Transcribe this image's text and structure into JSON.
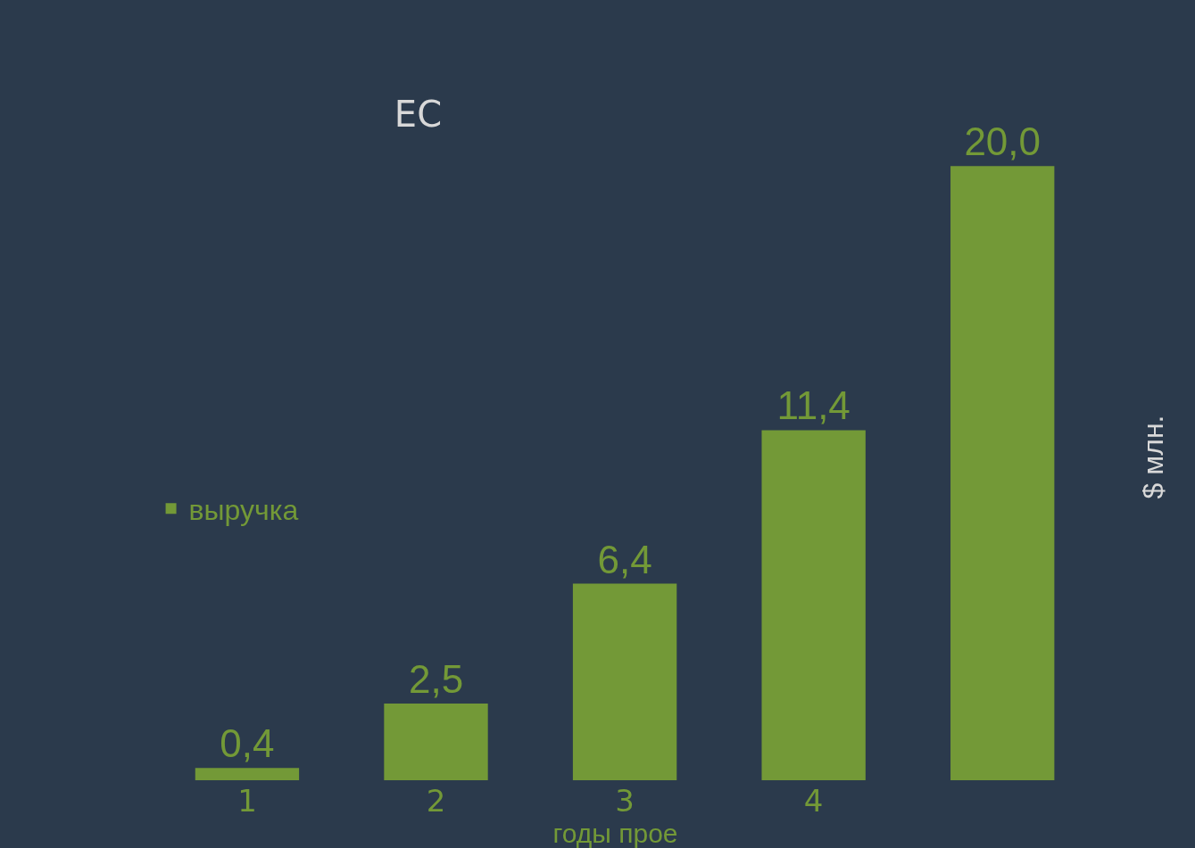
{
  "chart_data": {
    "type": "bar",
    "title": "ЕС",
    "xlabel": "годы прое",
    "ylabel": "$ млн.",
    "categories": [
      "1",
      "2",
      "3",
      "4",
      null
    ],
    "series": [
      {
        "name": "выручка",
        "color": "#739937",
        "values": [
          0.4,
          2.5,
          6.4,
          11.4,
          20.0
        ],
        "value_labels": [
          "0,4",
          "2,5",
          "6,4",
          "11,4",
          "20,0"
        ]
      }
    ],
    "legend": "left"
  }
}
